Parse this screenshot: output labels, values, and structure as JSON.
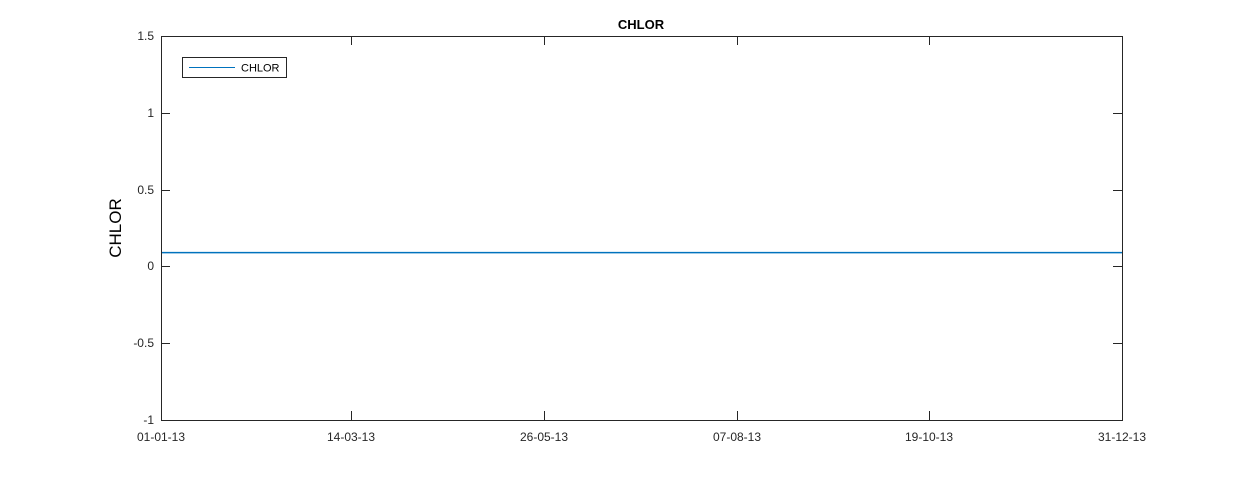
{
  "chart_data": {
    "type": "line",
    "title": "CHLOR",
    "xlabel": "",
    "ylabel": "CHLOR",
    "x_type": "date",
    "x_format": "DD-MM-YY",
    "xlim": [
      "2013-01-01",
      "2013-12-31"
    ],
    "ylim": [
      -1,
      1.5
    ],
    "x_ticks": [
      "2013-01-01",
      "2013-03-14",
      "2013-05-26",
      "2013-08-07",
      "2013-10-19",
      "2013-12-31"
    ],
    "x_tick_labels": [
      "01-01-13",
      "14-03-13",
      "26-05-13",
      "07-08-13",
      "19-10-13",
      "31-12-13"
    ],
    "y_ticks": [
      -1,
      -0.5,
      0,
      0.5,
      1,
      1.5
    ],
    "y_tick_labels": [
      "-1",
      "-0.5",
      "0",
      "0.5",
      "1",
      "1.5"
    ],
    "grid": false,
    "legend": {
      "placement": "top-left",
      "entries": [
        "CHLOR"
      ]
    },
    "series": [
      {
        "name": "CHLOR",
        "color": "#0072bd",
        "x": [
          "2013-01-01",
          "2013-12-31"
        ],
        "values": [
          0.09,
          0.09
        ]
      }
    ]
  }
}
